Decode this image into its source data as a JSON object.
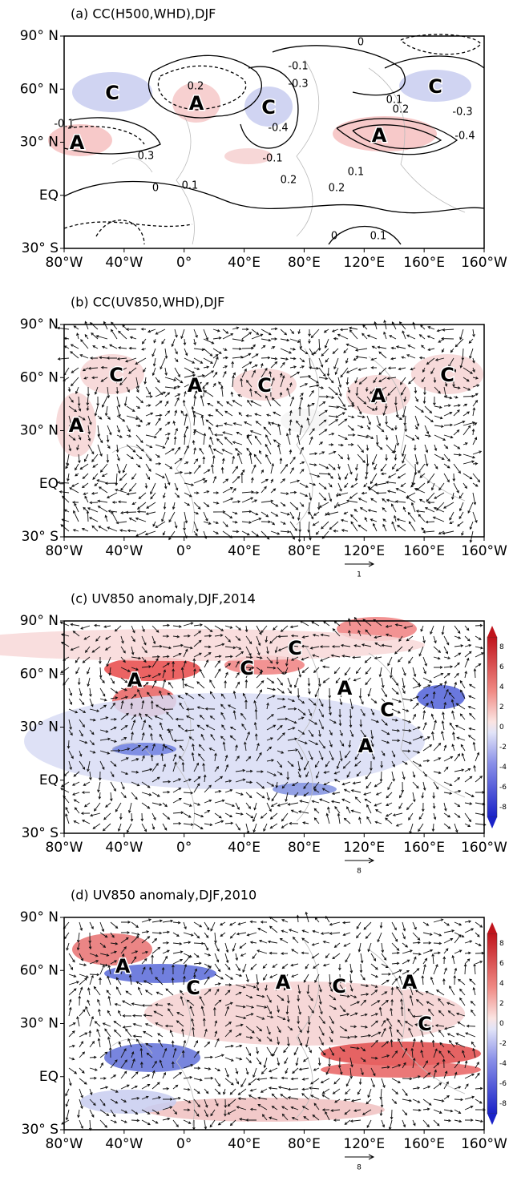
{
  "panels": [
    {
      "title": "(a) CC(H500,WHD),DJF",
      "lat_labels": [
        "90° N",
        "60° N",
        "30° N",
        "EQ",
        "30° S"
      ],
      "lon_labels": [
        "80°W",
        "40°W",
        "0°",
        "40°E",
        "80°E",
        "120°E",
        "160°E",
        "160°W"
      ],
      "annotations": [
        "C",
        "A",
        "C",
        "A",
        "A",
        "C"
      ],
      "contour_labels": [
        "0",
        "-0.1",
        "-0.3",
        "0.2",
        "-0.1",
        "-0.4",
        "0.3",
        "-0.1",
        "0",
        "0.1",
        "0.2",
        "0.2",
        "0.1",
        "0.1",
        "0.2",
        "-0.3",
        "-0.4",
        "0",
        "0.1"
      ]
    },
    {
      "title": "(b) CC(UV850,WHD),DJF",
      "lat_labels": [
        "90° N",
        "60° N",
        "30° N",
        "EQ",
        "30° S"
      ],
      "lon_labels": [
        "80°W",
        "40°W",
        "0°",
        "40°E",
        "80°E",
        "120°E",
        "160°E",
        "160°W"
      ],
      "annotations": [
        "C",
        "A",
        "C",
        "A",
        "C",
        "A"
      ],
      "reference_vector": "1"
    },
    {
      "title": "(c) UV850 anomaly,DJF,2014",
      "lat_labels": [
        "90° N",
        "60° N",
        "30° N",
        "EQ",
        "30° S"
      ],
      "lon_labels": [
        "80°W",
        "40°W",
        "0°",
        "40°E",
        "80°E",
        "120°E",
        "160°E",
        "160°W"
      ],
      "annotations": [
        "A",
        "C",
        "C",
        "A",
        "C",
        "A"
      ],
      "reference_vector": "8",
      "colorbar_ticks": [
        "8",
        "6",
        "4",
        "2",
        "0",
        "-2",
        "-4",
        "-6",
        "-8"
      ]
    },
    {
      "title": "(d) UV850 anomaly,DJF,2010",
      "lat_labels": [
        "90° N",
        "60° N",
        "30° N",
        "EQ",
        "30° S"
      ],
      "lon_labels": [
        "80°W",
        "40°W",
        "0°",
        "40°E",
        "80°E",
        "120°E",
        "160°E",
        "160°W"
      ],
      "annotations": [
        "A",
        "C",
        "A",
        "C",
        "A",
        "C"
      ],
      "reference_vector": "8",
      "colorbar_ticks": [
        "8",
        "6",
        "4",
        "2",
        "0",
        "-2",
        "-4",
        "-6",
        "-8"
      ]
    }
  ]
}
